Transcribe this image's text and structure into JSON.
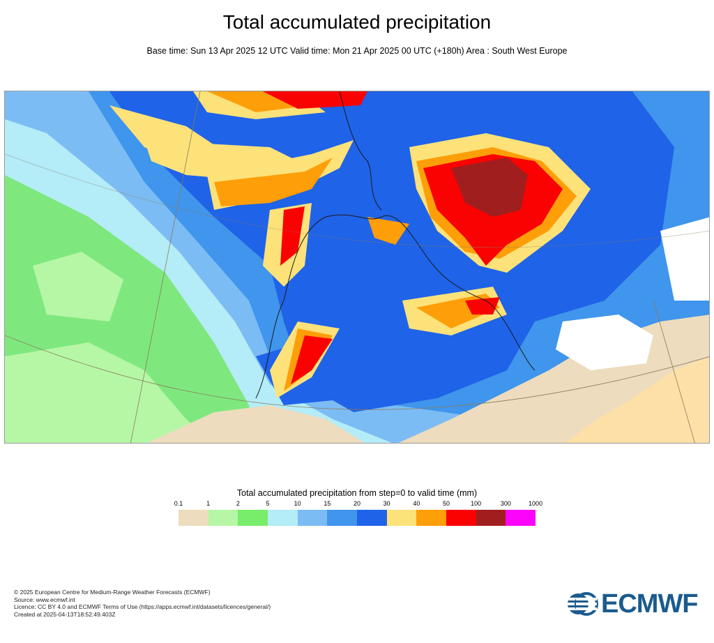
{
  "title": "Total accumulated precipitation",
  "subtitle": "Base time: Sun 13 Apr 2025 12 UTC Valid time: Mon 21 Apr 2025 00 UTC (+180h) Area : South West Europe",
  "legend": {
    "title": "Total accumulated precipitation from step=0 to valid time (mm)",
    "ticks": [
      "0.1",
      "1",
      "2",
      "5",
      "10",
      "15",
      "20",
      "30",
      "40",
      "50",
      "100",
      "300",
      "1000"
    ],
    "colors": [
      "#eddcbd",
      "#b6f7a6",
      "#78ec6b",
      "#b4ecf8",
      "#7cbcf4",
      "#4095ec",
      "#1f63e8",
      "#fde27a",
      "#fe9e09",
      "#fb0202",
      "#a11e1e",
      "#fc03fc"
    ]
  },
  "footer": {
    "copyright": "© 2025 European Centre for Medium-Range Weather Forecasts (ECMWF)",
    "source": "Source: www.ecmwf.int",
    "licence": "Licence: CC BY 4.0 and ECMWF Terms of Use (https://apps.ecmwf.int/datasets/licences/general/)",
    "created": "Created at 2025-04-13T18:52:49.403Z"
  },
  "logo": {
    "text": "ECMWF",
    "color": "#1b5b8e"
  }
}
